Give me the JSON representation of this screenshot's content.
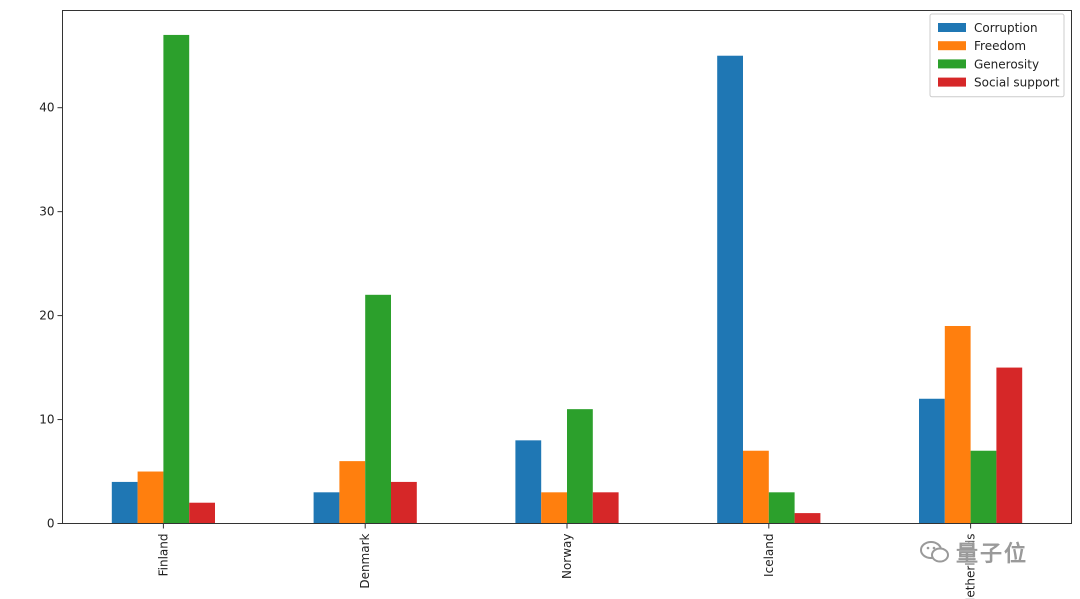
{
  "chart_data": {
    "type": "bar",
    "categories": [
      "Finland",
      "Denmark",
      "Norway",
      "Iceland",
      "Netherlands"
    ],
    "series": [
      {
        "name": "Corruption",
        "color": "#1f77b4",
        "values": [
          4,
          3,
          8,
          45,
          12
        ]
      },
      {
        "name": "Freedom",
        "color": "#ff7f0e",
        "values": [
          5,
          6,
          3,
          7,
          19
        ]
      },
      {
        "name": "Generosity",
        "color": "#2ca02c",
        "values": [
          47,
          22,
          11,
          3,
          7
        ]
      },
      {
        "name": "Social support",
        "color": "#d62728",
        "values": [
          2,
          4,
          3,
          1,
          15
        ]
      }
    ],
    "yticks": [
      0,
      10,
      20,
      30,
      40
    ],
    "ylim": [
      0,
      49.35
    ],
    "legend_placement": "top-right",
    "grid": false
  },
  "watermark": {
    "text": "量子位",
    "icon": "wechat-icon"
  }
}
